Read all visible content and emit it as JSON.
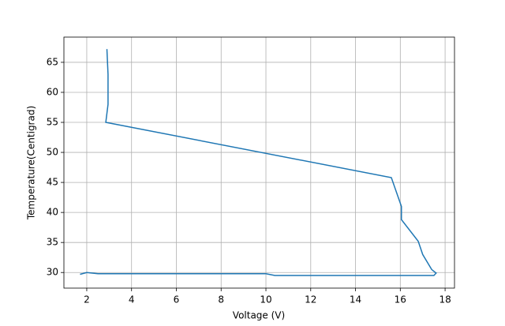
{
  "chart_data": {
    "type": "line",
    "xlabel": "Voltage (V)",
    "ylabel": "Temperature(Centigrad)",
    "x": [
      2.9,
      2.95,
      2.95,
      2.85,
      15.6,
      16.05,
      16.05,
      16.8,
      17.0,
      17.4,
      17.6,
      17.5,
      10.4,
      10.0,
      2.5,
      2.0,
      1.7
    ],
    "series": [
      {
        "color": "#1f77b4",
        "values": [
          67.2,
          63,
          58,
          55,
          45.8,
          41,
          38.8,
          35.2,
          33,
          30.5,
          29.9,
          29.5,
          29.5,
          29.8,
          29.8,
          30,
          29.7
        ]
      }
    ],
    "xlim": [
      0.98,
      18.42
    ],
    "ylim": [
      27.4,
      69.2
    ],
    "xticks": [
      2,
      4,
      6,
      8,
      10,
      12,
      14,
      16,
      18
    ],
    "yticks": [
      30,
      35,
      40,
      45,
      50,
      55,
      60,
      65
    ],
    "grid": true
  }
}
